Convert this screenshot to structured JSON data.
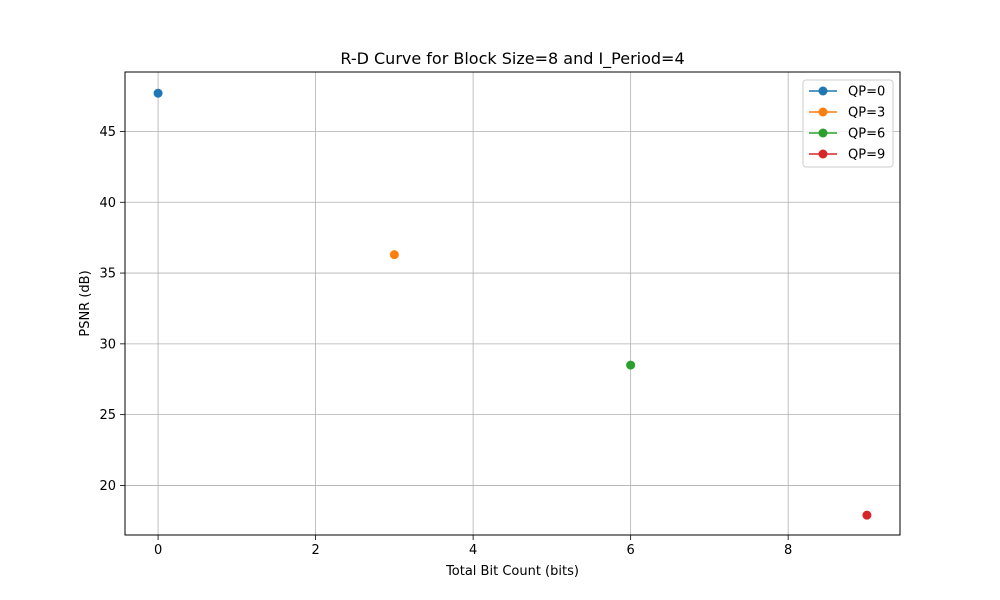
{
  "chart_data": {
    "type": "scatter",
    "title": "R-D Curve for Block Size=8 and I_Period=4",
    "xlabel": "Total Bit Count (bits)",
    "ylabel": "PSNR (dB)",
    "xlim": [
      -0.42,
      9.42
    ],
    "ylim": [
      16.5,
      49.2
    ],
    "xticks": [
      0,
      2,
      4,
      6,
      8
    ],
    "yticks": [
      20,
      25,
      30,
      35,
      40,
      45
    ],
    "grid": true,
    "legend_position": "top-right",
    "series": [
      {
        "name": "QP=0",
        "color": "#1f77b4",
        "points": [
          [
            0,
            47.7
          ]
        ]
      },
      {
        "name": "QP=3",
        "color": "#ff7f0e",
        "points": [
          [
            3,
            36.3
          ]
        ]
      },
      {
        "name": "QP=6",
        "color": "#2ca02c",
        "points": [
          [
            6,
            28.5
          ]
        ]
      },
      {
        "name": "QP=9",
        "color": "#d62728",
        "points": [
          [
            9,
            17.9
          ]
        ]
      }
    ]
  }
}
